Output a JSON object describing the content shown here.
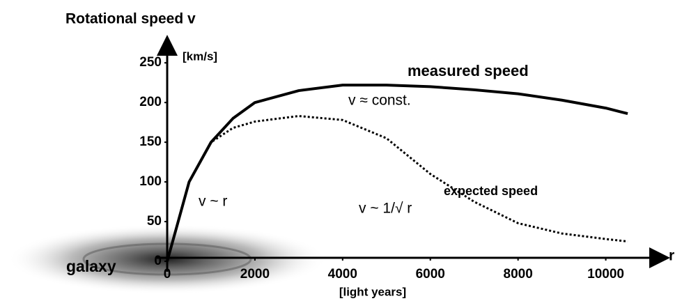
{
  "chart_data": {
    "type": "line",
    "title": "Rotational speed  v",
    "y_unit": "[km/s]",
    "x_label": "r",
    "x_unit": "[light years]",
    "annotations": {
      "galaxy": "galaxy",
      "const": "v ≈ const.",
      "linear": "v ~ r",
      "kepler": "v ~ 1/√ r"
    },
    "x": [
      0,
      500,
      1000,
      1500,
      2000,
      3000,
      4000,
      5000,
      6000,
      7000,
      8000,
      9000,
      10000,
      10500
    ],
    "series": [
      {
        "name": "measured speed",
        "color": "#000000",
        "dash": "solid",
        "values": [
          0,
          100,
          150,
          180,
          200,
          215,
          222,
          222,
          220,
          216,
          211,
          203,
          193,
          186
        ]
      },
      {
        "name": "expected speed",
        "color": "#000000",
        "dash": "dotted",
        "values": [
          0,
          100,
          150,
          168,
          176,
          183,
          178,
          155,
          110,
          75,
          48,
          35,
          28,
          25
        ]
      }
    ],
    "xlim": [
      0,
      11500
    ],
    "ylim": [
      0,
      280
    ],
    "xticks": [
      0,
      2000,
      4000,
      6000,
      8000,
      10000
    ],
    "yticks": [
      0,
      50,
      100,
      150,
      200,
      250
    ],
    "grid": false
  }
}
